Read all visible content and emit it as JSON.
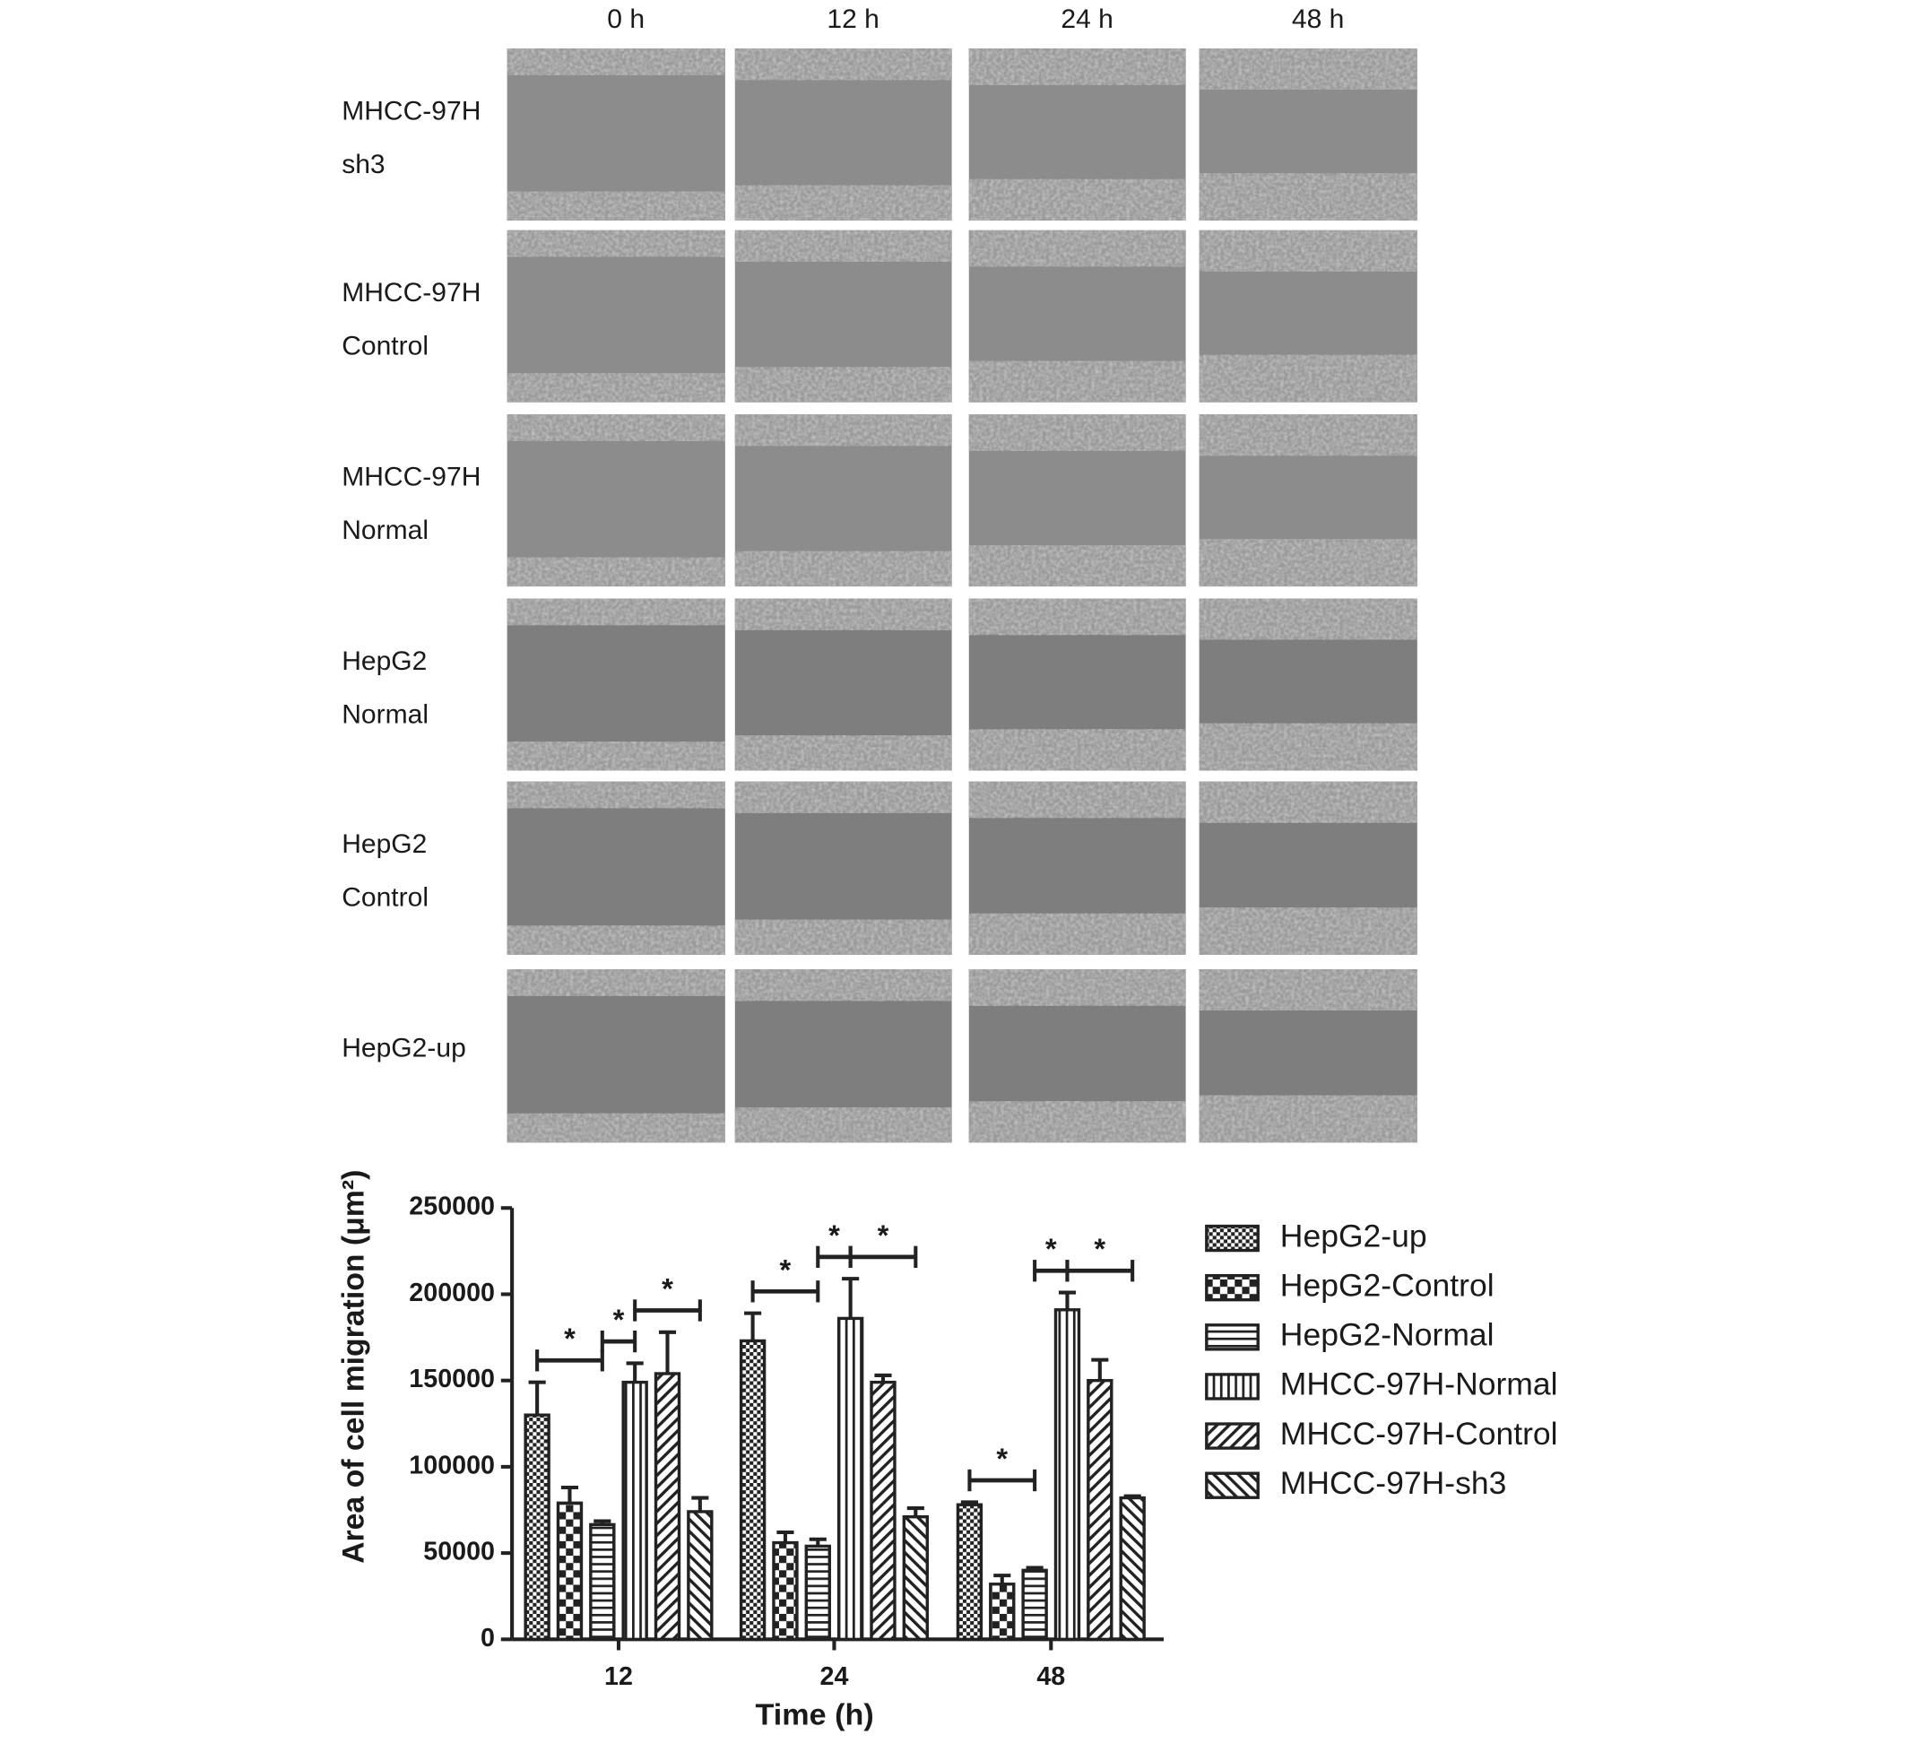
{
  "micrographs": {
    "columns": [
      "0 h",
      "12 h",
      "24 h",
      "48 h"
    ],
    "rows": [
      {
        "lines": [
          "MHCC-97H",
          "sh3"
        ]
      },
      {
        "lines": [
          "MHCC-97H",
          "Control"
        ]
      },
      {
        "lines": [
          "MHCC-97H",
          "Normal"
        ]
      },
      {
        "lines": [
          "HepG2",
          "Normal"
        ]
      },
      {
        "lines": [
          "HepG2",
          "Control"
        ]
      },
      {
        "lines": [
          "HepG2-up"
        ]
      }
    ]
  },
  "chart_data": {
    "type": "bar",
    "y_label": "Area of cell migration (μm²)",
    "x_label": "Time (h)",
    "categories": [
      "12",
      "24",
      "48"
    ],
    "series": [
      {
        "name": "HepG2-up",
        "color": "#222222",
        "pattern": "checker",
        "values": [
          130000,
          173000,
          78000
        ],
        "errors": [
          19000,
          16000,
          1500
        ]
      },
      {
        "name": "HepG2-Control",
        "color": "#222222",
        "pattern": "grid",
        "values": [
          79000,
          56000,
          32000
        ],
        "errors": [
          9000,
          6000,
          5000
        ]
      },
      {
        "name": "HepG2-Normal",
        "color": "#222222",
        "pattern": "hstripe",
        "values": [
          66500,
          54000,
          40000
        ],
        "errors": [
          2000,
          4000,
          1500
        ]
      },
      {
        "name": "MHCC-97H-Normal",
        "color": "#222222",
        "pattern": "vstripe",
        "values": [
          149000,
          186000,
          191000
        ],
        "errors": [
          11000,
          23000,
          10000
        ]
      },
      {
        "name": "MHCC-97H-Control",
        "color": "#222222",
        "pattern": "diag",
        "values": [
          154000,
          149000,
          150000
        ],
        "errors": [
          24000,
          4000,
          12000
        ]
      },
      {
        "name": "MHCC-97H-sh3",
        "color": "#222222",
        "pattern": "antidiag",
        "values": [
          74000,
          71000,
          82000
        ],
        "errors": [
          8000,
          5000,
          1000
        ]
      }
    ],
    "ylim": [
      0,
      250000
    ],
    "yticks": [
      0,
      50000,
      100000,
      150000,
      200000,
      250000
    ],
    "significance": [
      {
        "category": 0,
        "from": 0,
        "to": 2,
        "label": "*"
      },
      {
        "category": 0,
        "from": 2,
        "to": 3,
        "label": "*"
      },
      {
        "category": 0,
        "from": 3,
        "to": 5,
        "label": "*"
      },
      {
        "category": 1,
        "from": 0,
        "to": 2,
        "label": "*"
      },
      {
        "category": 1,
        "from": 2,
        "to": 3,
        "label": "*"
      },
      {
        "category": 1,
        "from": 3,
        "to": 5,
        "label": "*"
      },
      {
        "category": 2,
        "from": 0,
        "to": 2,
        "label": "*"
      },
      {
        "category": 2,
        "from": 2,
        "to": 3,
        "label": "*"
      },
      {
        "category": 2,
        "from": 3,
        "to": 5,
        "label": "*"
      }
    ]
  }
}
